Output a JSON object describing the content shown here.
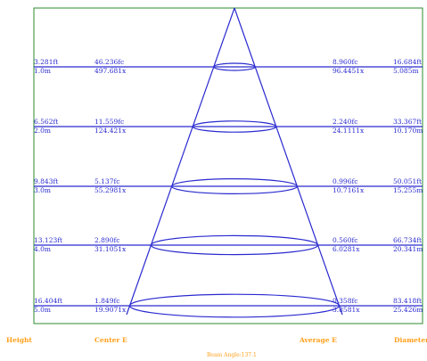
{
  "colors": {
    "frame": "#2e8b2e",
    "lines": "#2a2ad0",
    "labels": "#ff9f1a",
    "background": "#ffffff"
  },
  "rows": [
    {
      "height_ft": "3.281ft",
      "height_m": "1.0m",
      "center_fc": "46.236fc",
      "center_lx": "497.681x",
      "avg_fc": "8.960fc",
      "avg_lx": "96.4451x",
      "diam_ft": "16.684ft",
      "diam_m": "5.085m"
    },
    {
      "height_ft": "6.562ft",
      "height_m": "2.0m",
      "center_fc": "11.559fc",
      "center_lx": "124.421x",
      "avg_fc": "2.240fc",
      "avg_lx": "24.1111x",
      "diam_ft": "33.367ft",
      "diam_m": "10.170m"
    },
    {
      "height_ft": "9.843ft",
      "height_m": "3.0m",
      "center_fc": "5.137fc",
      "center_lx": "55.2981x",
      "avg_fc": "0.996fc",
      "avg_lx": "10.7161x",
      "diam_ft": "50.051ft",
      "diam_m": "15.255m"
    },
    {
      "height_ft": "13.123ft",
      "height_m": "4.0m",
      "center_fc": "2.890fc",
      "center_lx": "31.1051x",
      "avg_fc": "0.560fc",
      "avg_lx": "6.0281x",
      "diam_ft": "66.734ft",
      "diam_m": "20.341m"
    },
    {
      "height_ft": "16.404ft",
      "height_m": "5.0m",
      "center_fc": "1.849fc",
      "center_lx": "19.9071x",
      "avg_fc": "0.358fc",
      "avg_lx": "3.8581x",
      "diam_ft": "83.418ft",
      "diam_m": "25.426m"
    }
  ],
  "footer": {
    "height": "Height",
    "center": "Center E",
    "average": "Average E",
    "diameter": "Diameter"
  },
  "beam_angle": "Beam Angle:137.1"
}
